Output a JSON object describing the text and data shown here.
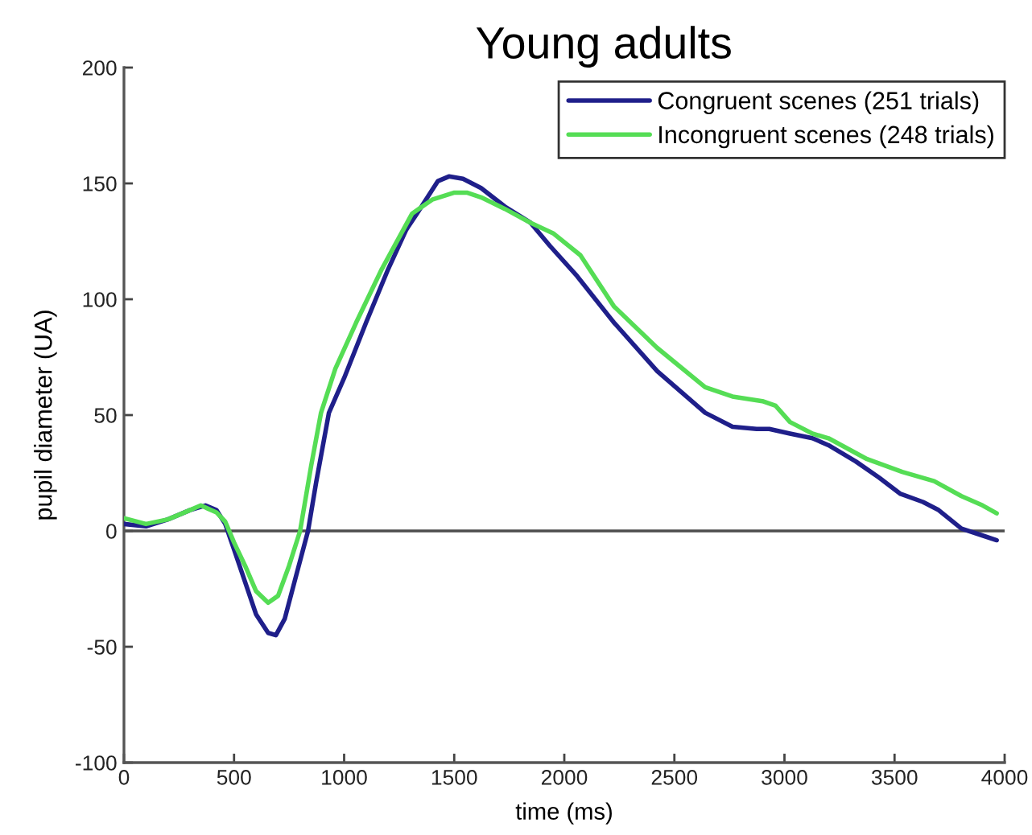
{
  "chart_data": {
    "type": "line",
    "title": "Young adults",
    "xlabel": "time (ms)",
    "ylabel": "pupil diameter (UA)",
    "xlim": [
      0,
      4000
    ],
    "xticks": [
      0,
      500,
      1000,
      1500,
      2000,
      2500,
      3000,
      3500,
      4000
    ],
    "ylim": [
      -100,
      200
    ],
    "yticks": [
      -100,
      -50,
      0,
      50,
      100,
      150,
      200
    ],
    "legend": "top right",
    "marker": "none",
    "line_style": "solid",
    "ref_lines": [
      {
        "axis": "y",
        "value": 0,
        "color": "#4d4d4d"
      }
    ],
    "series": [
      {
        "name": "Congruent scenes (251 trials)",
        "color": "#1f1f8a",
        "x": [
          0,
          100,
          200,
          300,
          370,
          420,
          460,
          500,
          550,
          600,
          655,
          690,
          730,
          780,
          836,
          873,
          931,
          1000,
          1100,
          1200,
          1282,
          1331,
          1426,
          1476,
          1540,
          1622,
          1730,
          1847,
          1935,
          2058,
          2225,
          2422,
          2640,
          2764,
          2873,
          2931,
          3025,
          3127,
          3200,
          3324,
          3430,
          3527,
          3629,
          3700,
          3804,
          3900,
          3964
        ],
        "values": [
          3,
          2,
          5,
          9,
          11,
          9,
          3,
          -8,
          -22,
          -36,
          -44,
          -45,
          -38,
          -20,
          0,
          21,
          51,
          66,
          90,
          113,
          130,
          137,
          151,
          153,
          152,
          148,
          140,
          133,
          123,
          110,
          90,
          69,
          51,
          45,
          44,
          44,
          42,
          40,
          37,
          30,
          23,
          16,
          12.5,
          9,
          1,
          -2,
          -4
        ]
      },
      {
        "name": "Incongruent scenes (248 trials)",
        "color": "#55dd55",
        "x": [
          0,
          100,
          200,
          300,
          349,
          420,
          460,
          500,
          550,
          600,
          655,
          700,
          750,
          800,
          850,
          895,
          960,
          1055,
          1171,
          1309,
          1400,
          1498,
          1560,
          1622,
          1730,
          1847,
          1949,
          2073,
          2225,
          2422,
          2640,
          2764,
          2900,
          2960,
          3025,
          3127,
          3200,
          3375,
          3535,
          3680,
          3804,
          3900,
          3964
        ],
        "values": [
          5.5,
          3,
          5,
          9,
          11,
          8,
          4,
          -5,
          -15,
          -26,
          -31,
          -28,
          -15,
          0,
          28,
          51,
          70,
          90,
          113,
          137,
          143,
          146,
          146,
          144,
          139,
          133,
          128.5,
          119,
          97,
          79,
          62,
          58,
          56,
          54,
          47,
          42,
          40,
          31,
          25.5,
          21.5,
          15,
          11,
          7.6
        ]
      }
    ]
  }
}
